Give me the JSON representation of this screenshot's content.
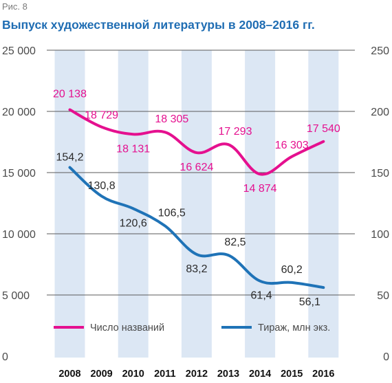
{
  "figure_label": "Рис. 8",
  "title": "Выпуск художественной литературы в 2008–2016 гг.",
  "colors": {
    "titles": "#e5108f",
    "print": "#1f73b7",
    "band": "#dce7f4",
    "title_text": "#1f6db3"
  },
  "chart_data": {
    "type": "line",
    "title": "Выпуск художественной литературы в 2008–2016 гг.",
    "categories": [
      "2008",
      "2009",
      "2010",
      "2011",
      "2012",
      "2013",
      "2014",
      "2015",
      "2016"
    ],
    "y_left": {
      "range": [
        0,
        25000
      ],
      "ticks": [
        "0",
        "5 000",
        "10 000",
        "15 000",
        "20 000",
        "25 000"
      ]
    },
    "y_right": {
      "range": [
        0,
        250
      ],
      "ticks": [
        "0",
        "50",
        "100",
        "150",
        "200",
        "250"
      ]
    },
    "grid": true,
    "legend_position": "bottom",
    "series": [
      {
        "name": "Число названий",
        "axis": "left",
        "color": "#e5108f",
        "values": [
          20138,
          18729,
          18131,
          18305,
          16624,
          17293,
          14874,
          16303,
          17540
        ],
        "labels": [
          "20 138",
          "18 729",
          "18 131",
          "18 305",
          "16 624",
          "17 293",
          "14 874",
          "16 303",
          "17 540"
        ]
      },
      {
        "name": "Тираж, млн экз.",
        "axis": "right",
        "color": "#1f73b7",
        "values": [
          154.2,
          130.8,
          120.6,
          106.5,
          83.2,
          82.5,
          61.4,
          60.2,
          56.1
        ],
        "labels": [
          "154,2",
          "130,8",
          "120,6",
          "106,5",
          "83,2",
          "82,5",
          "61,4",
          "60,2",
          "56,1"
        ]
      }
    ]
  }
}
